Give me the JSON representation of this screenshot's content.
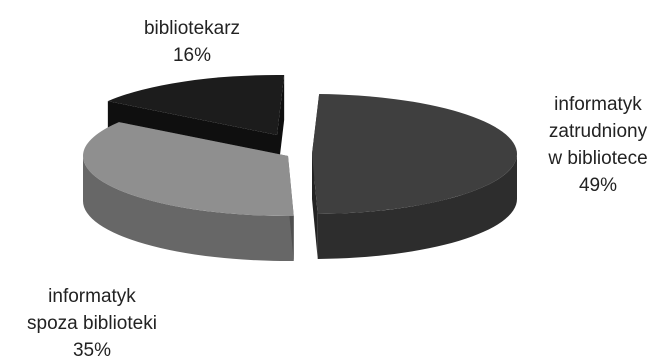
{
  "chart_data": {
    "type": "pie",
    "title": "",
    "legend": "none",
    "slices": [
      {
        "label": [
          "informatyk",
          "zatrudniony",
          "w bibliotece"
        ],
        "value": 49,
        "value_label": "49%",
        "color": "#3f3f3f"
      },
      {
        "label": [
          "informatyk",
          "spoza biblioteki"
        ],
        "value": 35,
        "value_label": "35%",
        "color": "#8f8f8f"
      },
      {
        "label": [
          "bibliotekarz"
        ],
        "value": 16,
        "value_label": "16%",
        "color": "#1c1c1c"
      }
    ]
  }
}
